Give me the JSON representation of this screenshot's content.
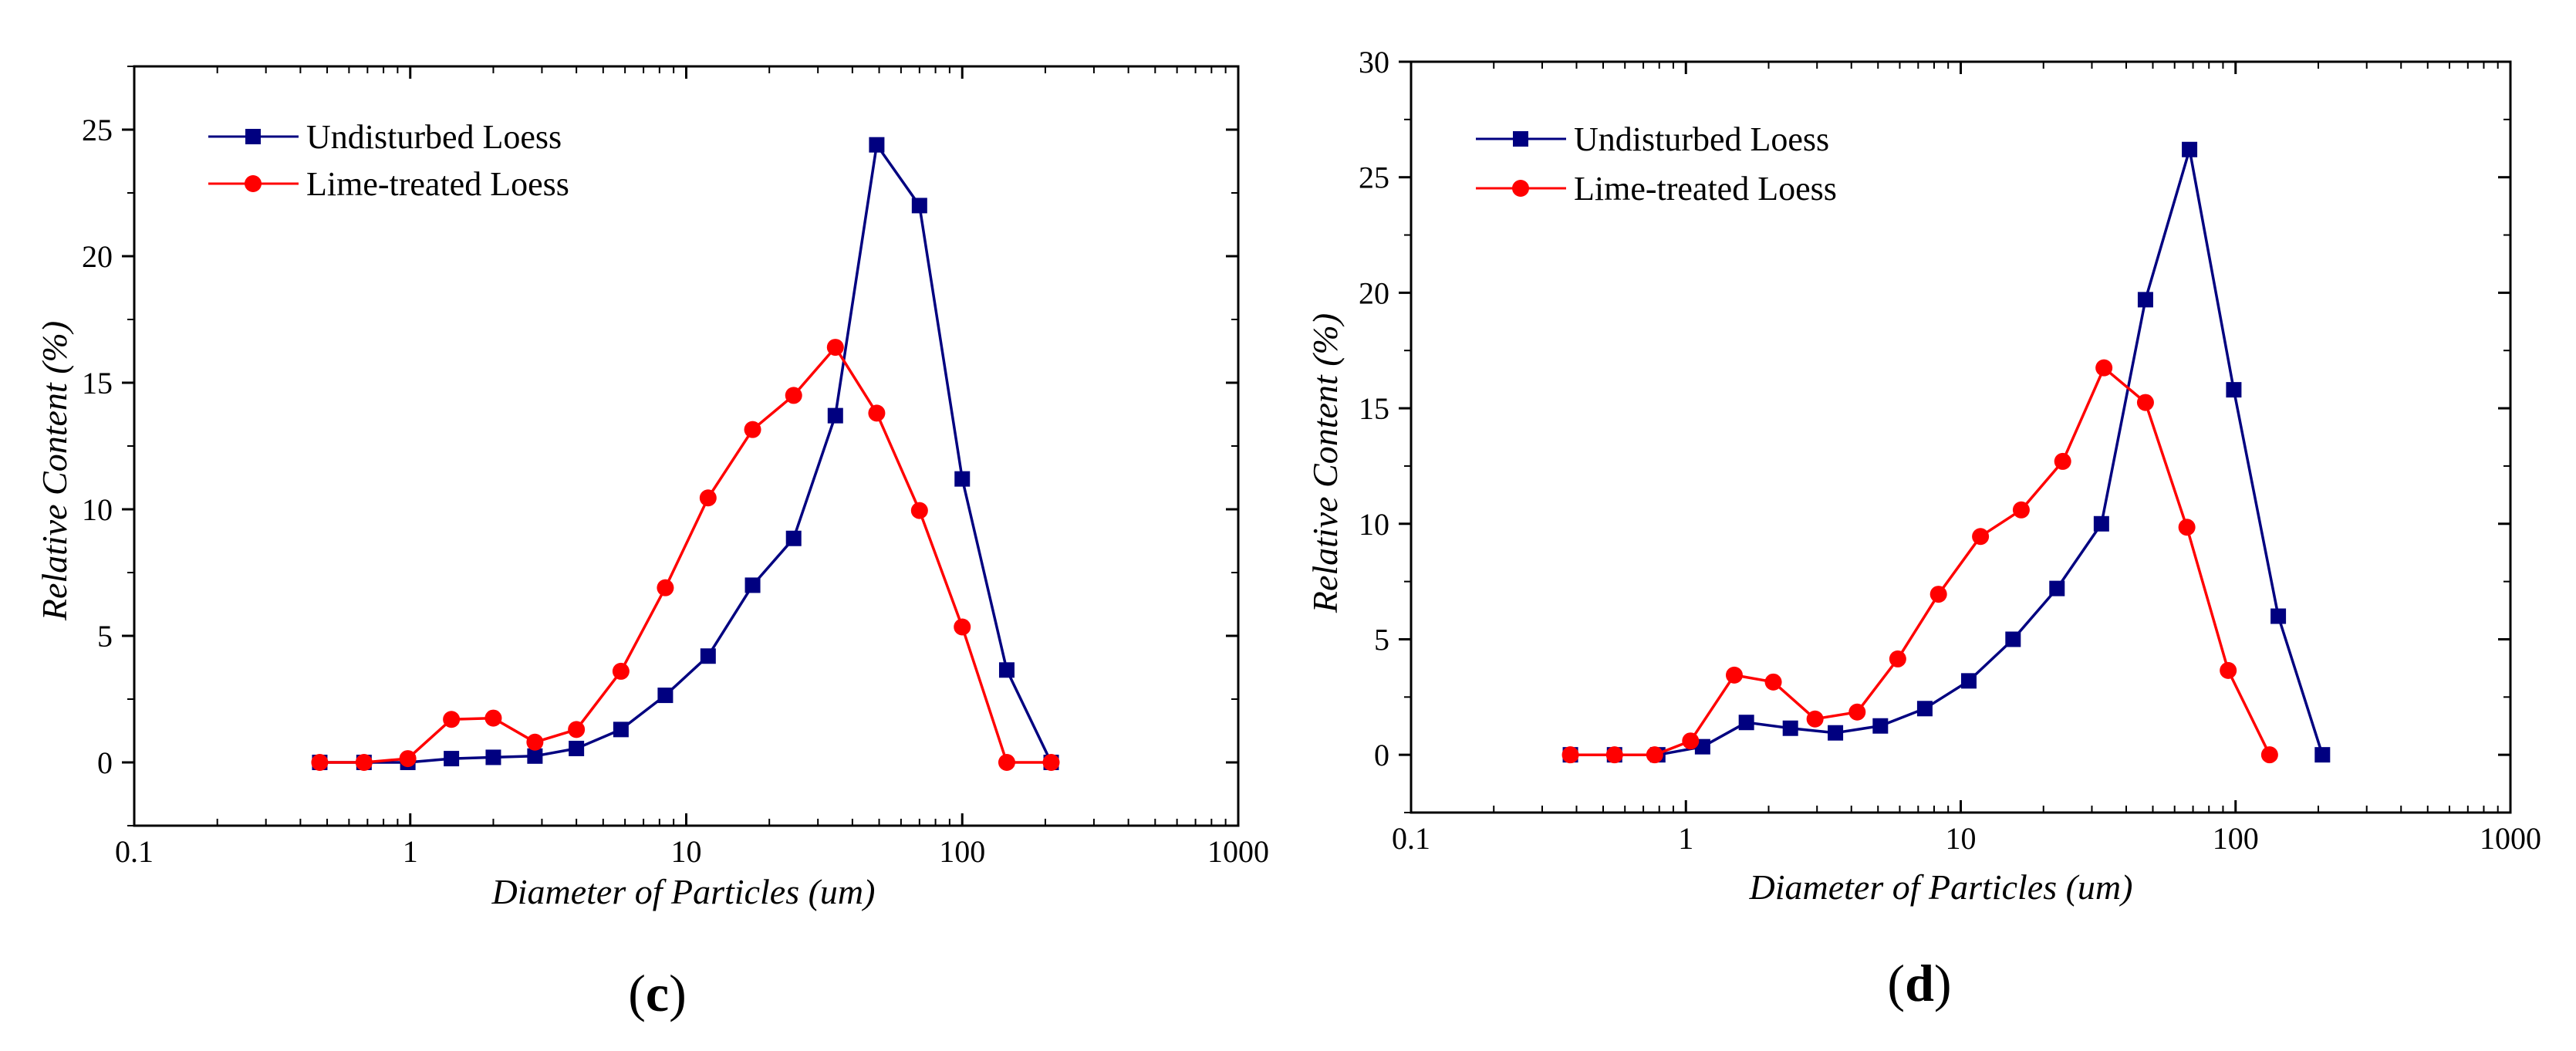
{
  "chart_data": [
    {
      "panel": "c",
      "panel_label": "(c)",
      "panel_label_parts": {
        "open": "(",
        "letter": "c",
        "close": ")"
      },
      "type": "line",
      "xscale": "log",
      "xlabel": "Diameter of Particles (um)",
      "ylabel": "Relative Content (%)",
      "xlim": [
        0.1,
        1000
      ],
      "ylim": [
        -2.5,
        27.5
      ],
      "xticks": [
        0.1,
        1,
        10,
        100,
        1000
      ],
      "xtick_labels": [
        "0.1",
        "1",
        "10",
        "100",
        "1000"
      ],
      "yticks": [
        0,
        5,
        10,
        15,
        20,
        25
      ],
      "ytick_labels": [
        "0",
        "5",
        "10",
        "15",
        "20",
        "25"
      ],
      "legend_position": "top-left",
      "series": [
        {
          "name": "Undisturbed Loess",
          "color": "#000080",
          "marker": "square",
          "x": [
            0.47,
            0.68,
            0.98,
            1.41,
            2.0,
            2.83,
            4.0,
            5.8,
            8.4,
            12.0,
            17.4,
            24.5,
            34.7,
            49.0,
            70.0,
            100,
            145,
            210
          ],
          "y": [
            0.0,
            0.0,
            0.0,
            0.15,
            0.2,
            0.25,
            0.55,
            1.3,
            2.65,
            4.2,
            7.0,
            8.85,
            13.7,
            24.4,
            22.0,
            11.2,
            3.65,
            0.0
          ]
        },
        {
          "name": "Lime-treated Loess",
          "color": "#FF0000",
          "marker": "circle",
          "x": [
            0.47,
            0.68,
            0.98,
            1.41,
            2.0,
            2.83,
            4.0,
            5.8,
            8.4,
            12.0,
            17.4,
            24.5,
            34.7,
            49.0,
            70.0,
            100,
            145,
            210
          ],
          "y": [
            0.0,
            0.0,
            0.15,
            1.7,
            1.75,
            0.8,
            1.3,
            3.6,
            6.9,
            10.45,
            13.15,
            14.5,
            16.4,
            13.8,
            9.95,
            5.35,
            0.0,
            0.0
          ]
        }
      ]
    },
    {
      "panel": "d",
      "panel_label": "(d)",
      "panel_label_parts": {
        "open": "(",
        "letter": "d",
        "close": ")"
      },
      "type": "line",
      "xscale": "log",
      "xlabel": "Diameter of Particles (um)",
      "ylabel": "Relative Content (%)",
      "xlim": [
        0.1,
        1000
      ],
      "ylim": [
        -2.5,
        30
      ],
      "xticks": [
        0.1,
        1,
        10,
        100,
        1000
      ],
      "xtick_labels": [
        "0.1",
        "1",
        "10",
        "100",
        "1000"
      ],
      "yticks": [
        0,
        5,
        10,
        15,
        20,
        25,
        30
      ],
      "ytick_labels": [
        "0",
        "5",
        "10",
        "15",
        "20",
        "25",
        "30"
      ],
      "legend_position": "top-left",
      "series": [
        {
          "name": "Undisturbed Loess",
          "color": "#000080",
          "marker": "square",
          "x": [
            0.38,
            0.55,
            0.79,
            1.15,
            1.66,
            2.4,
            3.5,
            5.1,
            7.4,
            10.7,
            15.5,
            22.4,
            32.5,
            47.0,
            68.0,
            98.5,
            143,
            207
          ],
          "y": [
            0.0,
            0.0,
            0.0,
            0.35,
            1.4,
            1.15,
            0.95,
            1.25,
            2.0,
            3.2,
            5.0,
            7.2,
            10.0,
            19.7,
            26.2,
            15.8,
            6.0,
            0.0
          ]
        },
        {
          "name": "Lime-treated Loess",
          "color": "#FF0000",
          "marker": "circle",
          "x": [
            0.38,
            0.55,
            0.77,
            1.04,
            1.5,
            2.08,
            2.95,
            4.2,
            5.9,
            8.3,
            11.8,
            16.6,
            23.5,
            33.2,
            47.0,
            66.5,
            94.0,
            133
          ],
          "y": [
            0.0,
            0.0,
            0.0,
            0.6,
            3.45,
            3.15,
            1.55,
            1.85,
            4.15,
            6.95,
            9.45,
            10.6,
            12.7,
            16.75,
            15.25,
            9.85,
            3.65,
            0.0
          ]
        }
      ]
    }
  ]
}
